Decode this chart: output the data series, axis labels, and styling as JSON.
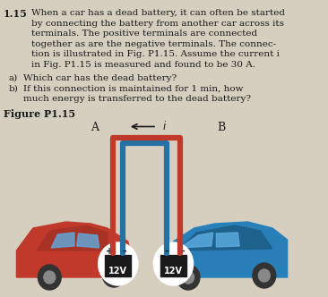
{
  "bg_color": "#d6cfc0",
  "title_num": "1.15",
  "main_text_lines": [
    "When a car has a dead battery, it can often be started",
    "by connecting the battery from another car across its",
    "terminals. The positive terminals are connected",
    "together as are the negative terminals. The connec-",
    "tion is illustrated in Fig. P1.15. Assume the current i",
    "in Fig. P1.15 is measured and found to be 30 A."
  ],
  "qa_lines": [
    [
      "a)",
      "Which car has the dead battery?"
    ],
    [
      "b)",
      "If this connection is maintained for 1 min, how"
    ],
    [
      "",
      "much energy is transferred to the dead battery?"
    ]
  ],
  "figure_label": "Figure P1.15",
  "label_A": "A",
  "label_B": "B",
  "label_i": "i",
  "label_12V_left": "12V",
  "label_12V_right": "12V",
  "car_left_color": "#c0392b",
  "car_right_color": "#2980b9",
  "cable_red": "#c0392b",
  "cable_blue": "#2471a3",
  "battery_color": "#1a1a1a",
  "battery_ring_color": "#ffffff",
  "text_color": "#1a1a1a",
  "font_size_main": 7.5,
  "font_size_figure": 8.0,
  "font_size_label": 9.0
}
